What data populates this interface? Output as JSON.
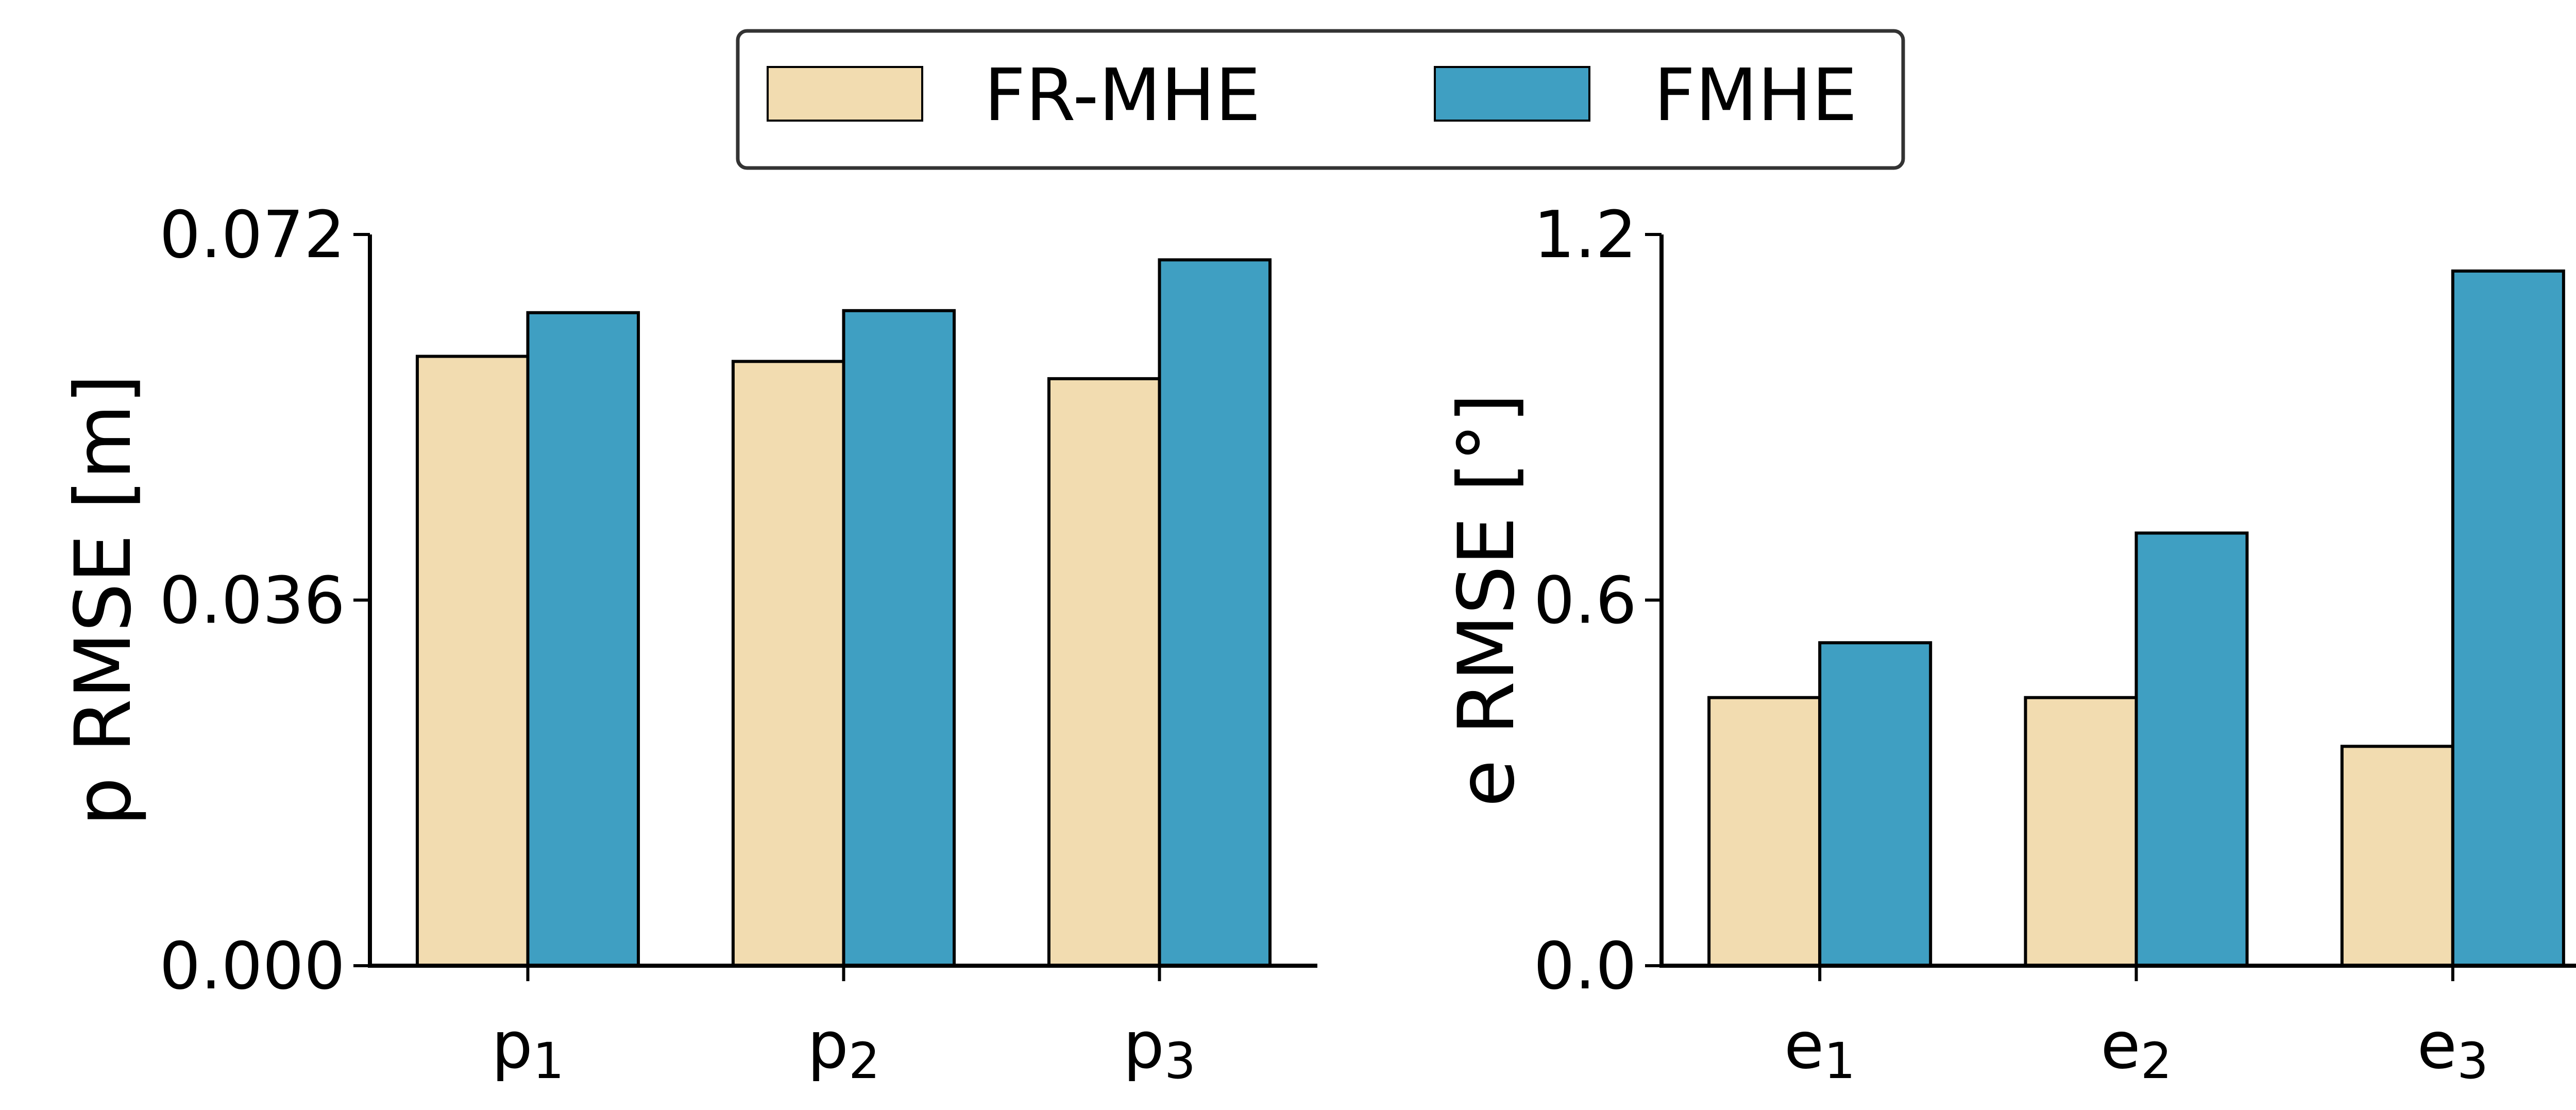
{
  "colors": {
    "fr_mhe": "#F2DCB0",
    "fmhe": "#3F9FC2",
    "edge": "#000000"
  },
  "legend": {
    "placement": "top-center",
    "items": [
      {
        "label": "FR-MHE",
        "color_key": "fr_mhe"
      },
      {
        "label": "FMHE",
        "color_key": "fmhe"
      }
    ]
  },
  "chart_data": [
    {
      "type": "bar",
      "ylabel": "p RMSE [m]",
      "ylim": [
        0,
        0.072
      ],
      "yticks": [
        "0.000",
        "0.036",
        "0.072"
      ],
      "ytick_values": [
        0,
        0.036,
        0.072
      ],
      "categories": [
        {
          "base": "p",
          "sub": "1"
        },
        {
          "base": "p",
          "sub": "2"
        },
        {
          "base": "p",
          "sub": "3"
        }
      ],
      "series": [
        {
          "name": "FR-MHE",
          "values": [
            0.06,
            0.0595,
            0.0578
          ]
        },
        {
          "name": "FMHE",
          "values": [
            0.0643,
            0.0645,
            0.0695
          ]
        }
      ],
      "grid": false
    },
    {
      "type": "bar",
      "ylabel": "e RMSE [°]",
      "ylim": [
        0,
        1.2
      ],
      "yticks": [
        "0.0",
        "0.6",
        "1.2"
      ],
      "ytick_values": [
        0,
        0.6,
        1.2
      ],
      "categories": [
        {
          "base": "e",
          "sub": "1"
        },
        {
          "base": "e",
          "sub": "2"
        },
        {
          "base": "e",
          "sub": "3"
        }
      ],
      "series": [
        {
          "name": "FR-MHE",
          "values": [
            0.44,
            0.44,
            0.36
          ]
        },
        {
          "name": "FMHE",
          "values": [
            0.53,
            0.71,
            1.14
          ]
        }
      ],
      "grid": false
    }
  ]
}
